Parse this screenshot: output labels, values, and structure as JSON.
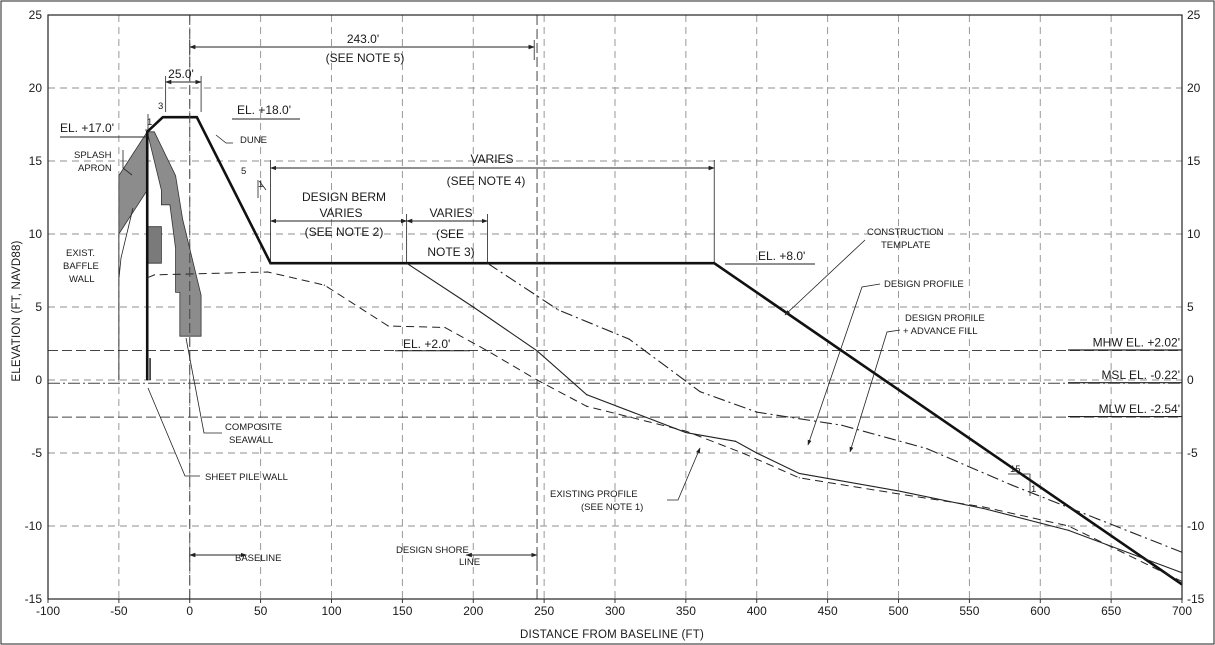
{
  "chart_data": {
    "type": "line",
    "xlabel": "DISTANCE FROM BASELINE (FT)",
    "ylabel": "ELEVATION (FT, NAVD88)",
    "xlim": [
      -100,
      700
    ],
    "ylim": [
      -15,
      25
    ],
    "x_ticks": [
      "-100",
      "-50",
      "0",
      "50",
      "100",
      "150",
      "200",
      "250",
      "300",
      "350",
      "400",
      "450",
      "500",
      "550",
      "600",
      "650",
      "700"
    ],
    "y_ticks": [
      "-15",
      "-10",
      "-5",
      "0",
      "5",
      "10",
      "15",
      "20",
      "25"
    ],
    "grid": true,
    "series": [
      {
        "x": [
          -30,
          -30,
          -19,
          5,
          57,
          370,
          700
        ],
        "y": [
          0,
          17,
          18,
          18,
          8,
          8,
          -14
        ],
        "style": "thick-solid"
      },
      {
        "x": [
          -30,
          -25,
          55,
          95,
          140,
          180,
          210,
          245,
          280,
          350,
          390,
          430,
          500,
          560,
          620,
          700
        ],
        "y": [
          7,
          7.2,
          7.4,
          6.5,
          3.7,
          3.6,
          2,
          0,
          -1.8,
          -3.5,
          -5,
          -6.7,
          -7.8,
          -8.7,
          -10,
          -13.8
        ],
        "style": "dashed"
      },
      {
        "x": [
          153,
          200,
          245,
          280,
          350,
          385,
          400,
          430,
          500,
          560,
          620,
          700
        ],
        "y": [
          8,
          5,
          2,
          -1,
          -3.6,
          -4.2,
          -5,
          -6.4,
          -7.6,
          -8.8,
          -10.3,
          -13.2
        ],
        "style": "solid"
      },
      {
        "x": [
          210,
          260,
          310,
          360,
          400,
          460,
          520,
          580,
          640,
          700
        ],
        "y": [
          8,
          4.8,
          2.8,
          -0.8,
          -2.2,
          -3.1,
          -4.7,
          -7.2,
          -9.5,
          -11.8
        ],
        "style": "dash-dot"
      }
    ],
    "tidal_levels": [
      {
        "label": "MHW EL. +2.02'",
        "y": 2.02
      },
      {
        "label": "MSL EL. -0.22'",
        "y": -0.22
      },
      {
        "label": "MLW EL. -2.54'",
        "y": -2.54
      }
    ],
    "annotations": {
      "dim_243": "243.0'",
      "note5": "(SEE NOTE 5)",
      "dim_25": "25.0'",
      "slope3": "3",
      "slope1a": "1",
      "el18": "EL. +18.0'",
      "el17": "EL. +17.0'",
      "splash1": "SPLASH",
      "splash2": "APRON",
      "dune": "DUNE",
      "slope5": "5",
      "slope1b": "1",
      "varies_top": "VARIES",
      "note4": "(SEE NOTE 4)",
      "berm1": "DESIGN BERM",
      "berm2": "VARIES",
      "note2": "(SEE NOTE 2)",
      "varies3": "VARIES",
      "see3a": "(SEE",
      "see3b": "NOTE 3)",
      "baffle1": "EXIST.",
      "baffle2": "BAFFLE",
      "baffle3": "WALL",
      "el8": "EL. +8.0'",
      "construct1": "CONSTRUCTION",
      "construct2": "TEMPLATE",
      "design_profile": "DESIGN PROFILE",
      "advance1": "DESIGN PROFILE",
      "advance2": "+ ADVANCE FILL",
      "el2": "EL. +2.0'",
      "composite1": "COMPOSITE",
      "composite2": "SEAWALL",
      "sheetpile": "SHEET PILE WALL",
      "existing1": "EXISTING PROFILE",
      "existing2": "(SEE NOTE 1)",
      "slope15": "15",
      "slope1c": "1",
      "baseline": "BASELINE",
      "shore1": "DESIGN SHORE",
      "shore2": "LINE"
    }
  }
}
